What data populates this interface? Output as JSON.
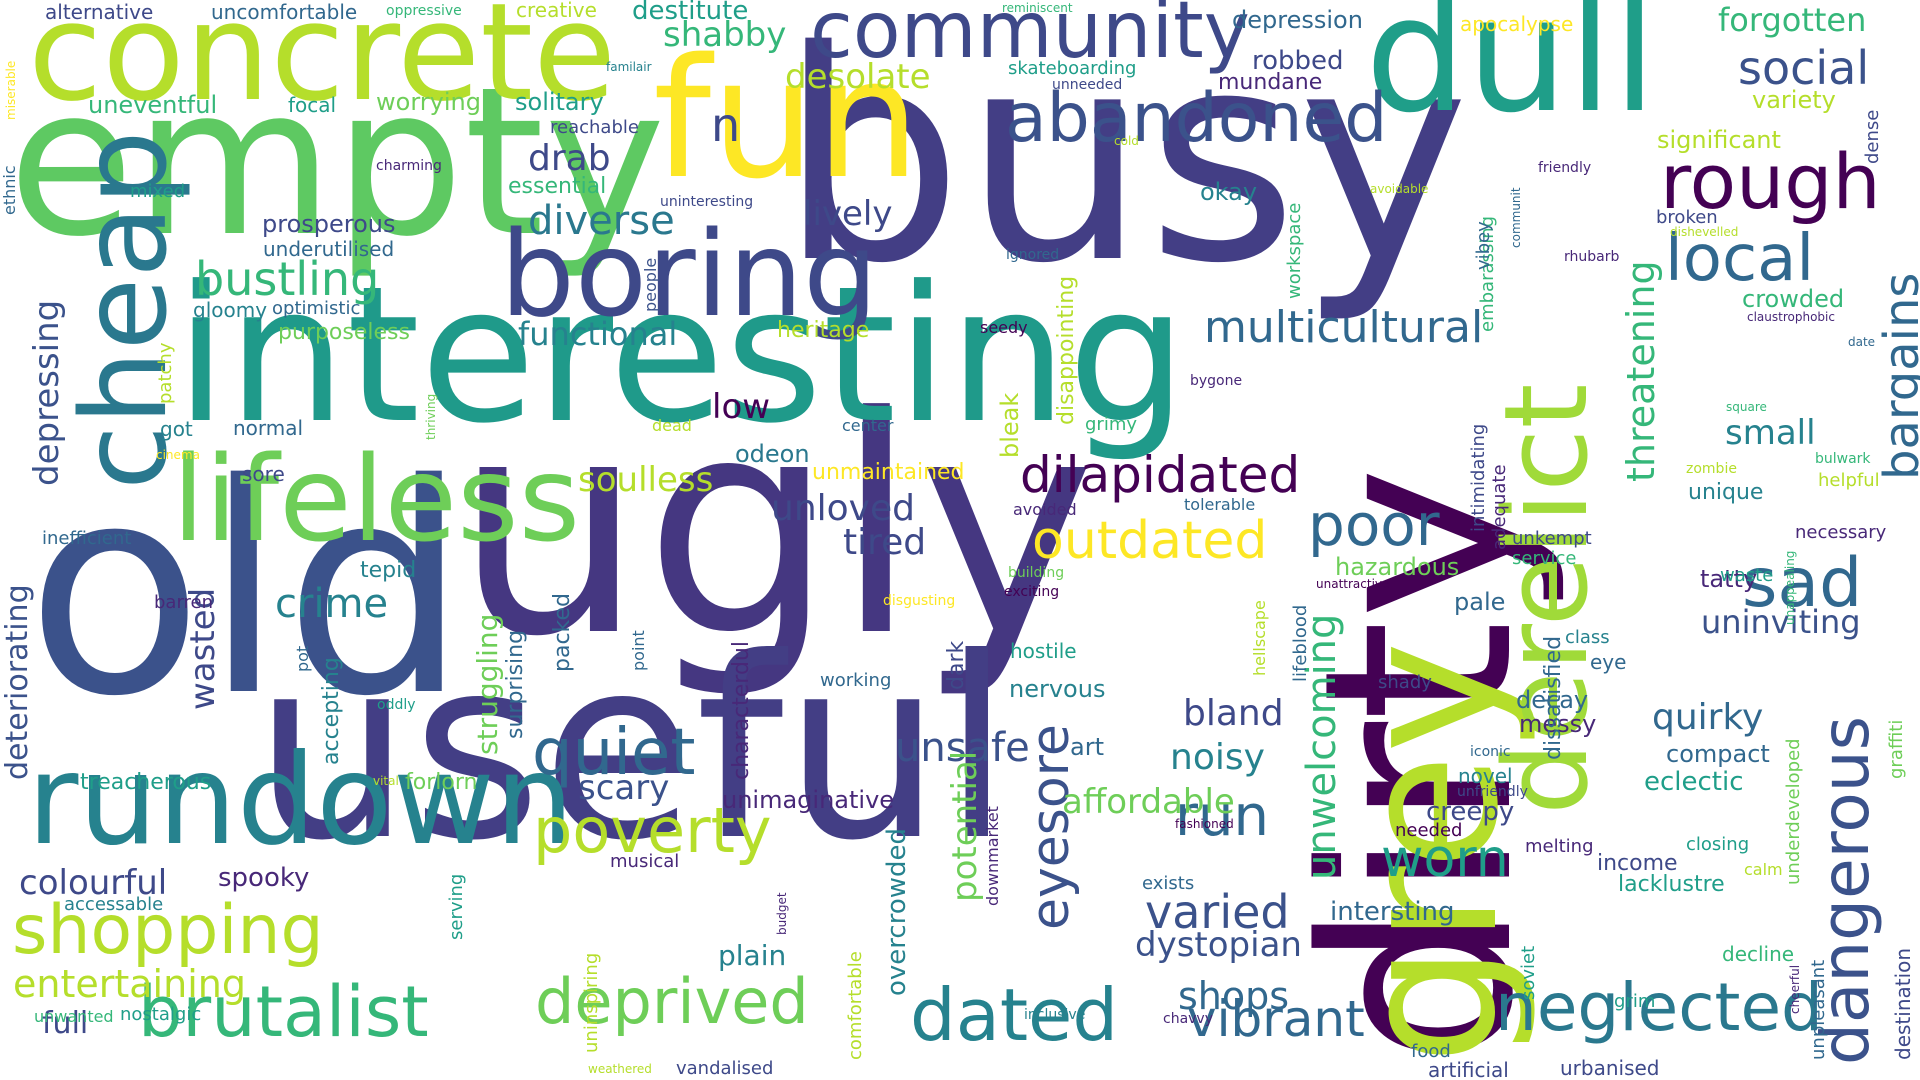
{
  "palette": [
    "#440154",
    "#482878",
    "#3e4989",
    "#31688e",
    "#26828e",
    "#1f9e89",
    "#35b779",
    "#6ece58",
    "#b5de2b",
    "#fde725"
  ],
  "words": {
    "busy": "busy",
    "useful": "useful",
    "ugly": "ugly",
    "old": "old",
    "interesting": "interesting",
    "dirty": "dirty",
    "empty": "empty",
    "grey": "grey",
    "fun": "fun",
    "dull": "dull",
    "concrete": "concrete",
    "rundown": "rundown",
    "boring": "boring",
    "lifeless": "lifeless",
    "cheap": "cheap",
    "derelict": "derelict",
    "community": "community",
    "abandoned": "abandoned",
    "rough": "rough",
    "local": "local",
    "shopping": "shopping",
    "brutalist": "brutalist",
    "deprived": "deprived",
    "dated": "dated",
    "neglected": "neglected",
    "dangerous": "dangerous",
    "poverty": "poverty",
    "quiet": "quiet",
    "outdated": "outdated",
    "dilapidated": "dilapidated",
    "poor": "poor",
    "sad": "sad",
    "multicultural": "multicultural",
    "bustling": "bustling",
    "diverse": "diverse",
    "social": "social",
    "forgotten": "forgotten",
    "entertaining": "entertaining",
    "vibrant": "vibrant",
    "worn": "worn",
    "run": "run",
    "varied": "varied",
    "eyesore": "eyesore",
    "unwelcoming": "unwelcoming",
    "bargains": "bargains",
    "threatening": "threatening",
    "soulless": "soulless",
    "unloved": "unloved",
    "unsafe": "unsafe",
    "crime": "crime",
    "functional": "functional",
    "colourful": "colourful",
    "uninviting": "uninviting",
    "dystopian": "dystopian",
    "affordable": "affordable",
    "lively": "lively",
    "tired": "tired",
    "depressing": "depressing",
    "deteriorating": "deteriorating",
    "shabby": "shabby",
    "desolate": "desolate",
    "drab": "drab",
    "noisy": "noisy",
    "scary": "scary",
    "small": "small",
    "quirky": "quirky",
    "bland": "bland",
    "potential": "potential",
    "shops": "shops",
    "n": "n",
    "low": "low",
    "wasted": "wasted",
    "intersting": "intersting",
    "overcrowded": "overcrowded",
    "plain": "plain",
    "full": "full",
    "struggling": "struggling",
    "odeon": "odeon",
    "nervous": "nervous",
    "spooky": "spooky",
    "unimaginative": "unimaginative",
    "characterdul": "characterdul",
    "creepy": "creepy",
    "eclectic": "eclectic",
    "compact": "compact",
    "hazardous": "hazardous",
    "messy": "messy",
    "decay": "decay",
    "pale": "pale",
    "okay": "okay",
    "variety": "variety",
    "significant": "significant",
    "crowded": "crowded",
    "unique": "unique",
    "tatty": "tatty",
    "necessary": "necessary",
    "helpful": "helpful",
    "destitute": "destitute",
    "creative": "creative",
    "alternative": "alternative",
    "uncomfortable": "uncomfortable",
    "oppressive": "oppressive",
    "reminiscent": "reminiscent",
    "depression": "depression",
    "apocalypse": "apocalypse",
    "robbed": "robbed",
    "mundane": "mundane",
    "skateboarding": "skateboarding",
    "unneeded": "unneeded",
    "familair": "familair",
    "uneventful": "uneventful",
    "focal": "focal",
    "worrying": "worrying",
    "solitary": "solitary",
    "reachable": "reachable",
    "essential": "essential",
    "charming": "charming",
    "mixed": "mixed",
    "prosperous": "prosperous",
    "underutilised": "underutilised",
    "gloomy": "gloomy",
    "optimistic": "optimistic",
    "purposeless": "purposeless",
    "heritage": "heritage",
    "got": "got",
    "normal": "normal",
    "sore": "sore",
    "inefficient": "inefficient",
    "tepid": "tepid",
    "barren": "barren",
    "treacherous": "treacherous",
    "forlorn": "forlorn",
    "accessable": "accessable",
    "musical": "musical",
    "unwanted": "unwanted",
    "nostalgic": "nostalgic",
    "vandalised": "vandalised",
    "weathered": "weathered",
    "inclusive": "inclusive",
    "chavvy": "chavvy",
    "food": "food",
    "artificial": "artificial",
    "urbanised": "urbanised",
    "grim": "grim",
    "income": "income",
    "closing": "closing",
    "lacklustre": "lacklustre",
    "calm": "calm",
    "decline": "decline",
    "melting": "melting",
    "needed": "needed",
    "novel": "novel",
    "unfriendly": "unfriendly",
    "iconic": "iconic",
    "class": "class",
    "eye": "eye",
    "service": "service",
    "unkempt": "unkempt",
    "adequate": "adequate",
    "intimidating": "intimidating",
    "embarassing": "embarassing",
    "vibey": "vibey",
    "broken": "broken",
    "dishevelled": "dishevelled",
    "rhubarb": "rhubarb",
    "claustrophobic": "claustrophobic",
    "date": "date",
    "square": "square",
    "zombie": "zombie",
    "bulwark": "bulwark",
    "friendly": "friendly",
    "avoidable": "avoidable",
    "cold": "cold",
    "ignored": "ignored",
    "uninteresting": "uninteresting",
    "seedy": "seedy",
    "bygone": "bygone",
    "tolerable": "tolerable",
    "avoided": "avoided",
    "building": "building",
    "exciting": "exciting",
    "disgusting": "disgusting",
    "unattractive": "unattractive",
    "waste": "waste",
    "shady": "shady",
    "hostile": "hostile",
    "working": "working",
    "center": "center",
    "dead": "dead",
    "grimy": "grimy",
    "cinema": "cinema",
    "art": "art",
    "fashioned": "fashioned",
    "exists": "exists",
    "downmarket": "downmarket",
    "comfortable": "comfortable",
    "serving": "serving",
    "budget": "budget",
    "uninspiring": "uninspiring",
    "oddly": "oddly",
    "vital": "vital",
    "accepting": "accepting",
    "pot": "pot",
    "point": "point",
    "surprising": "surprising",
    "packed": "packed",
    "thriving": "thriving",
    "patchy": "patchy",
    "people": "people",
    "workspace": "workspace",
    "disappointing": "disappointing",
    "bleak": "bleak",
    "unmaintained": "unmaintained",
    "miserable": "miserable",
    "ethnic": "ethnic",
    "soviet": "soviet",
    "dense": "dense",
    "unappealing": "unappealing",
    "cheerful": "cheerful",
    "unpleasant": "unpleasant",
    "destination": "destination",
    "graffiti": "graffiti",
    "underdeveloped": "underdeveloped",
    "dissatisfied": "dissatisfied",
    "lifeblood": "lifeblood",
    "hellscape": "hellscape",
    "communit": "communit",
    "dark": "dark"
  }
}
